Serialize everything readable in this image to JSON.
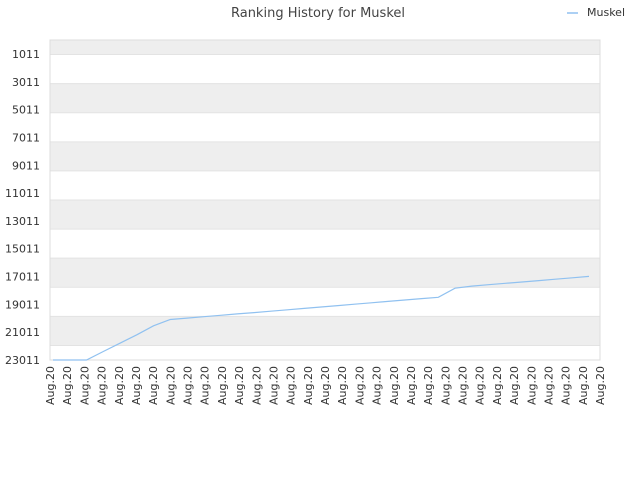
{
  "chart_data": {
    "type": "line",
    "title": "Ranking History for Muskel",
    "xlabel": "",
    "ylabel": "",
    "legend": {
      "placement": "top-right",
      "entries": [
        "Muskel"
      ]
    },
    "y_axis": {
      "reversed": true,
      "range": [
        1011,
        23011
      ],
      "ticks": [
        1011,
        3011,
        5011,
        7011,
        9011,
        11011,
        13011,
        15011,
        17011,
        19011,
        21011,
        23011
      ]
    },
    "x_axis": {
      "tick_labels": [
        "Aug.20",
        "Aug.20",
        "Aug.20",
        "Aug.20",
        "Aug.20",
        "Aug.20",
        "Aug.20",
        "Aug.20",
        "Aug.20",
        "Aug.20",
        "Aug.20",
        "Aug.20",
        "Aug.20",
        "Aug.20",
        "Aug.20",
        "Aug.20",
        "Aug.20",
        "Aug.20",
        "Aug.20",
        "Aug.20",
        "Aug.20",
        "Aug.20",
        "Aug.20",
        "Aug.20",
        "Aug.20",
        "Aug.20",
        "Aug.20",
        "Aug.20",
        "Aug.20",
        "Aug.20",
        "Aug.20",
        "Aug.20",
        "Aug.20"
      ]
    },
    "grid": true,
    "band_colors": [
      "#eeeeee",
      "#ffffff"
    ],
    "series": [
      {
        "name": "Muskel",
        "color": "#90c1f0",
        "values": [
          23011,
          23011,
          23011,
          22400,
          21800,
          21200,
          20550,
          20100,
          20000,
          19900,
          19800,
          19700,
          19600,
          19500,
          19400,
          19300,
          19200,
          19100,
          19000,
          18900,
          18800,
          18700,
          18600,
          18500,
          17850,
          17700,
          17600,
          17500,
          17400,
          17300,
          17200,
          17100,
          17000
        ]
      }
    ]
  }
}
